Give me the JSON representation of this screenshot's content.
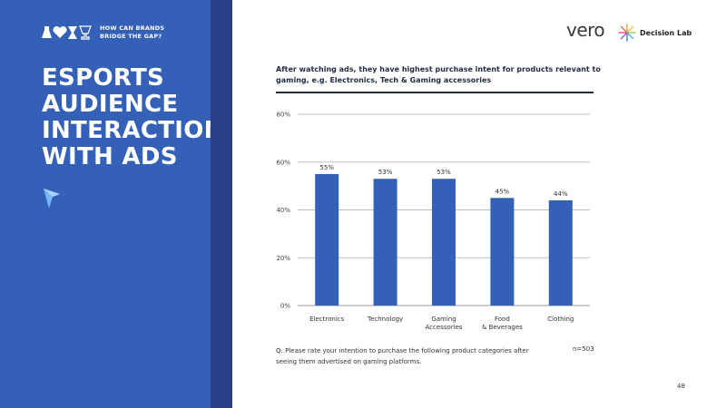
{
  "brand": {
    "tagline_line1": "HOW CAN BRANDS",
    "tagline_line2": "BRIDGE THE GAP?"
  },
  "section_title": [
    "ESPORTS",
    "AUDIENCE",
    "INTERACTION",
    "WITH ADS"
  ],
  "logos": {
    "vero": "vero",
    "decision_lab": "Decision Lab"
  },
  "colors": {
    "panel_blue": "#3460b8",
    "stripe_navy": "#2a3f8a",
    "bar_blue": "#3460b8",
    "cursor_blue": "#7ab8f5"
  },
  "chart_data": {
    "type": "bar",
    "title": "After watching ads, they have highest purchase intent for products relevant to gaming, e.g. Electronics, Tech & Gaming accessories",
    "categories": [
      [
        "Electronics"
      ],
      [
        "Technology"
      ],
      [
        "Gaming",
        "Accessories"
      ],
      [
        "Food",
        "& Beverages"
      ],
      [
        "Clothing"
      ]
    ],
    "values": [
      55,
      53,
      53,
      45,
      44
    ],
    "value_labels": [
      "55%",
      "53%",
      "53%",
      "45%",
      "44%"
    ],
    "yticks": [
      0,
      20,
      40,
      60,
      80
    ],
    "ytick_labels": [
      "0%",
      "20%",
      "40%",
      "60%",
      "80%"
    ],
    "ylim": [
      0,
      80
    ],
    "grid": true,
    "legend": "none"
  },
  "footnote": {
    "question": "Q: Please rate your intention to purchase the following product categories after seeing them advertised on gaming platforms.",
    "sample_size": "n=503"
  },
  "page_number": "48"
}
